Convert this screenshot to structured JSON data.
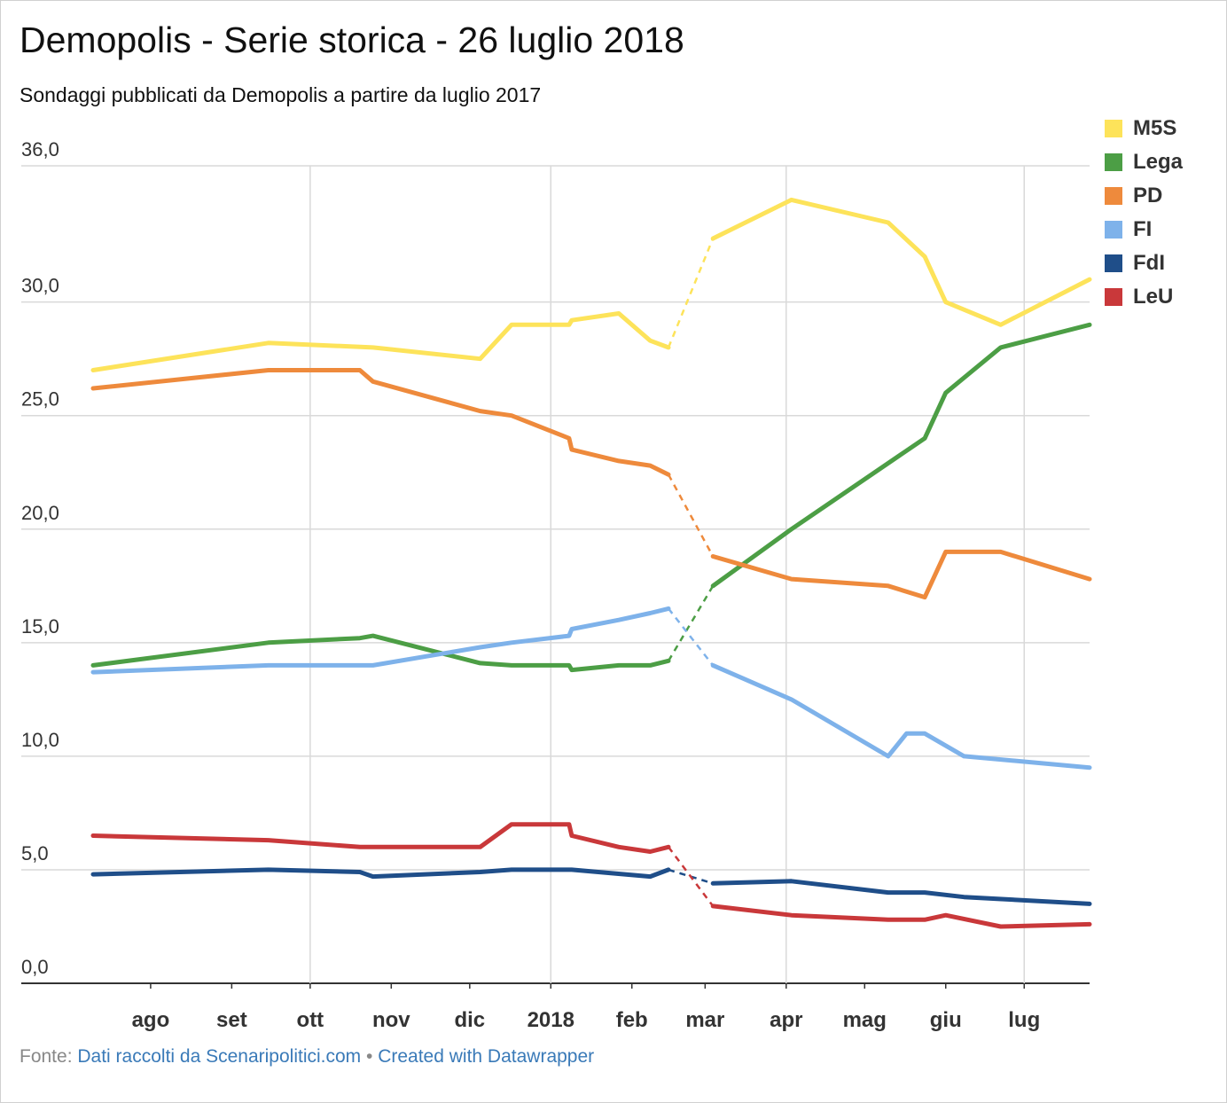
{
  "title": "Demopolis - Serie storica - 26 luglio 2018",
  "subtitle": "Sondaggi pubblicati da Demopolis a partire da luglio 2017",
  "footer": {
    "prefix": "Fonte: ",
    "source": "Dati raccolti da Scenaripolitici.com",
    "separator": " • ",
    "credit": "Created with Datawrapper"
  },
  "chart_data": {
    "type": "line",
    "x_ticks": [
      {
        "date": "2017-08-01",
        "label": "ago"
      },
      {
        "date": "2017-09-01",
        "label": "set"
      },
      {
        "date": "2017-10-01",
        "label": "ott"
      },
      {
        "date": "2017-11-01",
        "label": "nov"
      },
      {
        "date": "2017-12-01",
        "label": "dic"
      },
      {
        "date": "2018-01-01",
        "label": "2018"
      },
      {
        "date": "2018-02-01",
        "label": "feb"
      },
      {
        "date": "2018-03-01",
        "label": "mar"
      },
      {
        "date": "2018-04-01",
        "label": "apr"
      },
      {
        "date": "2018-05-01",
        "label": "mag"
      },
      {
        "date": "2018-06-01",
        "label": "giu"
      },
      {
        "date": "2018-07-01",
        "label": "lug"
      }
    ],
    "x_gridlines": [
      "2017-10-01",
      "2018-01-01",
      "2018-04-01",
      "2018-07-01"
    ],
    "x_range": [
      "2017-07-10",
      "2018-07-26"
    ],
    "y_ticks": [
      {
        "value": 0,
        "label": "0,0"
      },
      {
        "value": 5,
        "label": "5,0"
      },
      {
        "value": 10,
        "label": "10,0"
      },
      {
        "value": 15,
        "label": "15,0"
      },
      {
        "value": 20,
        "label": "20,0"
      },
      {
        "value": 25,
        "label": "25,0"
      },
      {
        "value": 30,
        "label": "30,0"
      },
      {
        "value": 36,
        "label": "36,0"
      }
    ],
    "ylim": [
      0,
      36
    ],
    "grid": true,
    "legend": "right",
    "dashed_between": [
      "2018-02-15",
      "2018-03-04"
    ],
    "series": [
      {
        "name": "M5S",
        "color": "#fde35a",
        "points": [
          [
            "2017-07-10",
            27.0
          ],
          [
            "2017-09-15",
            28.2
          ],
          [
            "2017-10-25",
            28.0
          ],
          [
            "2017-12-05",
            27.5
          ],
          [
            "2017-12-17",
            29.0
          ],
          [
            "2018-01-08",
            29.0
          ],
          [
            "2018-01-09",
            29.2
          ],
          [
            "2018-01-27",
            29.5
          ],
          [
            "2018-02-08",
            28.3
          ],
          [
            "2018-02-15",
            28.0
          ],
          [
            "2018-03-04",
            32.8
          ],
          [
            "2018-04-03",
            34.5
          ],
          [
            "2018-05-10",
            33.5
          ],
          [
            "2018-05-24",
            32.0
          ],
          [
            "2018-06-01",
            30.0
          ],
          [
            "2018-06-22",
            29.0
          ],
          [
            "2018-07-26",
            31.0
          ]
        ]
      },
      {
        "name": "Lega",
        "color": "#4c9e45",
        "points": [
          [
            "2017-07-10",
            14.0
          ],
          [
            "2017-09-15",
            15.0
          ],
          [
            "2017-10-20",
            15.2
          ],
          [
            "2017-10-25",
            15.3
          ],
          [
            "2017-12-05",
            14.1
          ],
          [
            "2017-12-17",
            14.0
          ],
          [
            "2018-01-08",
            14.0
          ],
          [
            "2018-01-09",
            13.8
          ],
          [
            "2018-01-27",
            14.0
          ],
          [
            "2018-02-08",
            14.0
          ],
          [
            "2018-02-15",
            14.2
          ],
          [
            "2018-03-04",
            17.5
          ],
          [
            "2018-04-03",
            20.0
          ],
          [
            "2018-05-24",
            24.0
          ],
          [
            "2018-06-01",
            26.0
          ],
          [
            "2018-06-22",
            28.0
          ],
          [
            "2018-07-26",
            29.0
          ]
        ]
      },
      {
        "name": "PD",
        "color": "#ee8a3c",
        "points": [
          [
            "2017-07-10",
            26.2
          ],
          [
            "2017-09-15",
            27.0
          ],
          [
            "2017-10-20",
            27.0
          ],
          [
            "2017-10-25",
            26.5
          ],
          [
            "2017-12-05",
            25.2
          ],
          [
            "2017-12-17",
            25.0
          ],
          [
            "2018-01-08",
            24.0
          ],
          [
            "2018-01-09",
            23.5
          ],
          [
            "2018-01-27",
            23.0
          ],
          [
            "2018-02-08",
            22.8
          ],
          [
            "2018-02-15",
            22.4
          ],
          [
            "2018-03-04",
            18.8
          ],
          [
            "2018-04-03",
            17.8
          ],
          [
            "2018-05-10",
            17.5
          ],
          [
            "2018-05-24",
            17.0
          ],
          [
            "2018-06-01",
            19.0
          ],
          [
            "2018-06-22",
            19.0
          ],
          [
            "2018-07-26",
            17.8
          ]
        ]
      },
      {
        "name": "FI",
        "color": "#7eb2ea",
        "points": [
          [
            "2017-07-10",
            13.7
          ],
          [
            "2017-09-15",
            14.0
          ],
          [
            "2017-10-25",
            14.0
          ],
          [
            "2017-12-05",
            14.8
          ],
          [
            "2017-12-17",
            15.0
          ],
          [
            "2018-01-08",
            15.3
          ],
          [
            "2018-01-09",
            15.6
          ],
          [
            "2018-01-27",
            16.0
          ],
          [
            "2018-02-08",
            16.3
          ],
          [
            "2018-02-15",
            16.5
          ],
          [
            "2018-03-04",
            14.0
          ],
          [
            "2018-04-03",
            12.5
          ],
          [
            "2018-05-10",
            10.0
          ],
          [
            "2018-05-17",
            11.0
          ],
          [
            "2018-05-24",
            11.0
          ],
          [
            "2018-06-08",
            10.0
          ],
          [
            "2018-07-26",
            9.5
          ]
        ]
      },
      {
        "name": "FdI",
        "color": "#1f4e89",
        "points": [
          [
            "2017-07-10",
            4.8
          ],
          [
            "2017-09-15",
            5.0
          ],
          [
            "2017-10-20",
            4.9
          ],
          [
            "2017-10-25",
            4.7
          ],
          [
            "2017-12-05",
            4.9
          ],
          [
            "2017-12-17",
            5.0
          ],
          [
            "2018-01-08",
            5.0
          ],
          [
            "2018-01-09",
            5.0
          ],
          [
            "2018-02-08",
            4.7
          ],
          [
            "2018-02-15",
            5.0
          ],
          [
            "2018-03-04",
            4.4
          ],
          [
            "2018-04-03",
            4.5
          ],
          [
            "2018-05-10",
            4.0
          ],
          [
            "2018-05-24",
            4.0
          ],
          [
            "2018-06-08",
            3.8
          ],
          [
            "2018-07-26",
            3.5
          ]
        ]
      },
      {
        "name": "LeU",
        "color": "#c9383a",
        "points": [
          [
            "2017-07-10",
            6.5
          ],
          [
            "2017-09-15",
            6.3
          ],
          [
            "2017-10-20",
            6.0
          ],
          [
            "2017-12-05",
            6.0
          ],
          [
            "2017-12-17",
            7.0
          ],
          [
            "2018-01-08",
            7.0
          ],
          [
            "2018-01-09",
            6.5
          ],
          [
            "2018-01-27",
            6.0
          ],
          [
            "2018-02-08",
            5.8
          ],
          [
            "2018-02-15",
            6.0
          ],
          [
            "2018-03-04",
            3.4
          ],
          [
            "2018-04-03",
            3.0
          ],
          [
            "2018-05-10",
            2.8
          ],
          [
            "2018-05-24",
            2.8
          ],
          [
            "2018-06-01",
            3.0
          ],
          [
            "2018-06-22",
            2.5
          ],
          [
            "2018-07-26",
            2.6
          ]
        ]
      }
    ]
  }
}
